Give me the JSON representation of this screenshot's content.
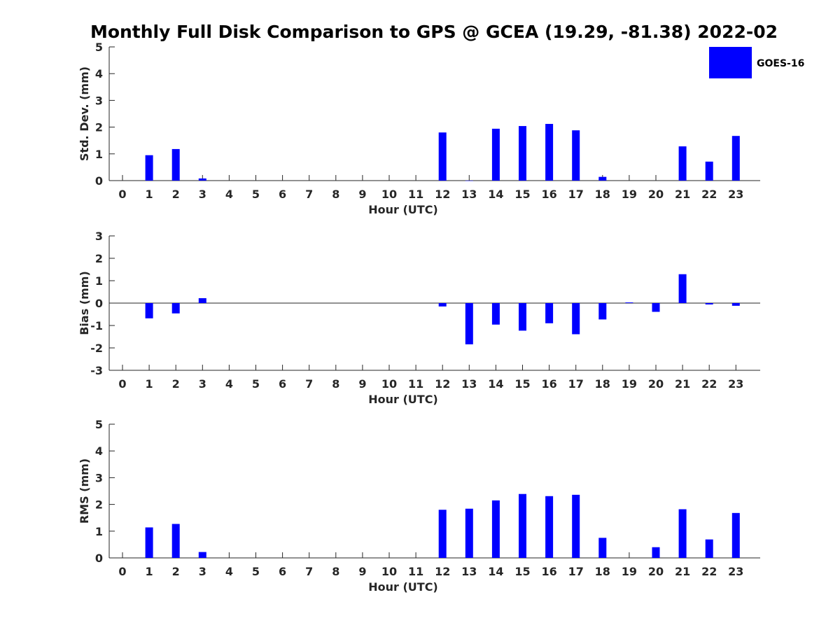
{
  "chart_data": {
    "type": "bar",
    "title": "Monthly Full Disk Comparison to GPS @ GCEA (19.29, -81.38) 2022-02",
    "legend": {
      "position": "top-right",
      "entries": [
        "GOES-16"
      ]
    },
    "colors": {
      "bar": "#0000ff",
      "axis": "#262626",
      "background": "#ffffff"
    },
    "categories": [
      "0",
      "1",
      "2",
      "3",
      "4",
      "5",
      "6",
      "7",
      "8",
      "9",
      "10",
      "11",
      "12",
      "13",
      "14",
      "15",
      "16",
      "17",
      "18",
      "19",
      "20",
      "21",
      "22",
      "23"
    ],
    "panels": [
      {
        "ylabel": "Std. Dev. (mm)",
        "xlabel": "Hour (UTC)",
        "ylim": [
          0,
          5
        ],
        "yticks": [
          0,
          1,
          2,
          3,
          4,
          5
        ],
        "series": [
          {
            "name": "GOES-16",
            "values": [
              null,
              0.95,
              1.18,
              0.08,
              null,
              null,
              null,
              null,
              null,
              null,
              null,
              null,
              1.8,
              0.0,
              1.94,
              2.04,
              2.12,
              1.88,
              0.14,
              null,
              null,
              1.28,
              0.71,
              1.67
            ]
          }
        ]
      },
      {
        "ylabel": "Bias (mm)",
        "xlabel": "Hour (UTC)",
        "ylim": [
          -3,
          3
        ],
        "yticks": [
          -3,
          -2,
          -1,
          0,
          1,
          2,
          3
        ],
        "series": [
          {
            "name": "GOES-16",
            "values": [
              null,
              -0.68,
              -0.46,
              0.22,
              null,
              null,
              null,
              null,
              null,
              null,
              null,
              null,
              -0.15,
              -1.84,
              -0.96,
              -1.23,
              -0.9,
              -1.39,
              -0.73,
              0.03,
              -0.39,
              1.29,
              -0.06,
              -0.12
            ]
          }
        ]
      },
      {
        "ylabel": "RMS (mm)",
        "xlabel": "Hour (UTC)",
        "ylim": [
          0,
          5
        ],
        "yticks": [
          0,
          1,
          2,
          3,
          4,
          5
        ],
        "series": [
          {
            "name": "GOES-16",
            "values": [
              null,
              1.14,
              1.27,
              0.22,
              null,
              null,
              null,
              null,
              null,
              null,
              null,
              null,
              1.8,
              1.84,
              2.15,
              2.39,
              2.31,
              2.36,
              0.75,
              null,
              0.4,
              1.82,
              0.69,
              1.68
            ]
          }
        ]
      }
    ]
  }
}
